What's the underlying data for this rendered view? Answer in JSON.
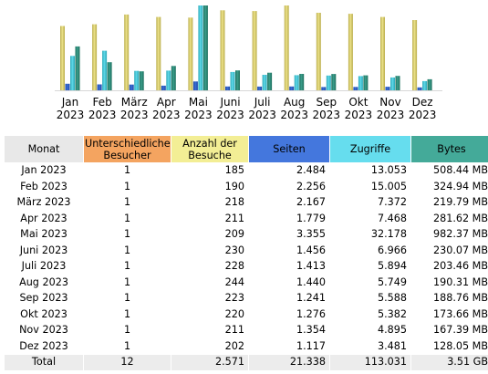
{
  "colors": {
    "visits_bar": "#ece28a",
    "pages_bar": "#3a6fd6",
    "hits_bar": "#5fd8e8",
    "bytes_bar": "#3b9e8a",
    "header_month": "#e8e8e8",
    "header_unique": "#f4a460",
    "header_visits": "#f3ee95",
    "header_pages": "#4477dd",
    "header_hits": "#66ddee",
    "header_bytes": "#44aa99",
    "total_row": "#ececec"
  },
  "chart_data": {
    "type": "bar",
    "categories": [
      [
        "Jan",
        "2023"
      ],
      [
        "Feb",
        "2023"
      ],
      [
        "März",
        "2023"
      ],
      [
        "Apr",
        "2023"
      ],
      [
        "Mai",
        "2023"
      ],
      [
        "Juni",
        "2023"
      ],
      [
        "Juli",
        "2023"
      ],
      [
        "Aug",
        "2023"
      ],
      [
        "Sep",
        "2023"
      ],
      [
        "Okt",
        "2023"
      ],
      [
        "Nov",
        "2023"
      ],
      [
        "Dez",
        "2023"
      ]
    ],
    "series": [
      {
        "key": "visits",
        "values": [
          185,
          190,
          218,
          211,
          209,
          230,
          228,
          244,
          223,
          220,
          211,
          202
        ]
      },
      {
        "key": "pages",
        "values": [
          2484,
          2256,
          2167,
          1779,
          3355,
          1456,
          1413,
          1440,
          1241,
          1276,
          1354,
          1117
        ]
      },
      {
        "key": "hits",
        "values": [
          13053,
          15005,
          7372,
          7468,
          32178,
          6966,
          5894,
          5749,
          5588,
          5382,
          4895,
          3481
        ]
      },
      {
        "key": "bytes_mb",
        "values": [
          508.44,
          324.94,
          219.79,
          281.62,
          982.37,
          230.07,
          203.46,
          190.31,
          188.76,
          173.66,
          167.39,
          128.05
        ]
      }
    ]
  },
  "table": {
    "headers": {
      "month": "Monat",
      "unique": "Unterschiedliche Besucher",
      "visits": "Anzahl der Besuche",
      "pages": "Seiten",
      "hits": "Zugriffe",
      "bytes": "Bytes"
    },
    "rows": [
      {
        "month": "Jan 2023",
        "unique": "1",
        "visits": "185",
        "pages": "2.484",
        "hits": "13.053",
        "bytes": "508.44 MB"
      },
      {
        "month": "Feb 2023",
        "unique": "1",
        "visits": "190",
        "pages": "2.256",
        "hits": "15.005",
        "bytes": "324.94 MB"
      },
      {
        "month": "März 2023",
        "unique": "1",
        "visits": "218",
        "pages": "2.167",
        "hits": "7.372",
        "bytes": "219.79 MB"
      },
      {
        "month": "Apr 2023",
        "unique": "1",
        "visits": "211",
        "pages": "1.779",
        "hits": "7.468",
        "bytes": "281.62 MB"
      },
      {
        "month": "Mai 2023",
        "unique": "1",
        "visits": "209",
        "pages": "3.355",
        "hits": "32.178",
        "bytes": "982.37 MB"
      },
      {
        "month": "Juni 2023",
        "unique": "1",
        "visits": "230",
        "pages": "1.456",
        "hits": "6.966",
        "bytes": "230.07 MB"
      },
      {
        "month": "Juli 2023",
        "unique": "1",
        "visits": "228",
        "pages": "1.413",
        "hits": "5.894",
        "bytes": "203.46 MB"
      },
      {
        "month": "Aug 2023",
        "unique": "1",
        "visits": "244",
        "pages": "1.440",
        "hits": "5.749",
        "bytes": "190.31 MB"
      },
      {
        "month": "Sep 2023",
        "unique": "1",
        "visits": "223",
        "pages": "1.241",
        "hits": "5.588",
        "bytes": "188.76 MB"
      },
      {
        "month": "Okt 2023",
        "unique": "1",
        "visits": "220",
        "pages": "1.276",
        "hits": "5.382",
        "bytes": "173.66 MB"
      },
      {
        "month": "Nov 2023",
        "unique": "1",
        "visits": "211",
        "pages": "1.354",
        "hits": "4.895",
        "bytes": "167.39 MB"
      },
      {
        "month": "Dez 2023",
        "unique": "1",
        "visits": "202",
        "pages": "1.117",
        "hits": "3.481",
        "bytes": "128.05 MB"
      }
    ],
    "total": {
      "month": "Total",
      "unique": "12",
      "visits": "2.571",
      "pages": "21.338",
      "hits": "113.031",
      "bytes": "3.51 GB"
    }
  }
}
